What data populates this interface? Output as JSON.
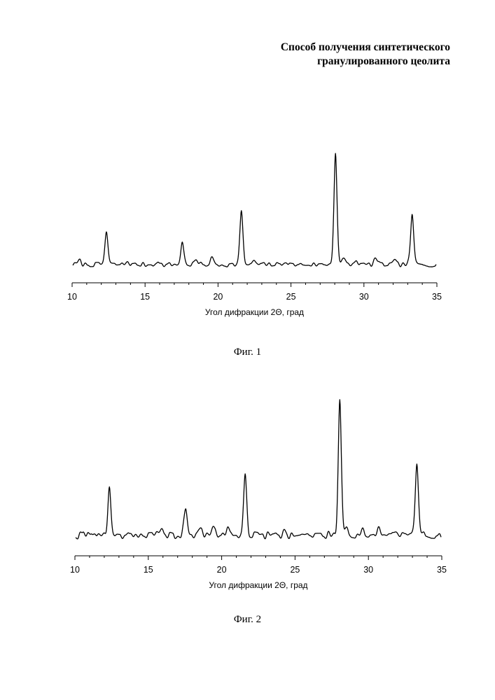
{
  "document": {
    "title_line1": "Способ получения синтетического",
    "title_line2": "гранулированного цеолита"
  },
  "chart_data": [
    {
      "type": "line",
      "caption": "Фиг. 1",
      "xlabel": "Угол дифракции 2Θ, град",
      "ylabel": "",
      "xlim": [
        10,
        35
      ],
      "x_ticks": [
        10,
        15,
        20,
        25,
        30,
        35
      ],
      "y_axis_shown": false,
      "baseline": 0.1,
      "ylim": [
        0,
        1.15
      ],
      "noise_seed": 7,
      "noise_amplitude": 0.018,
      "peaks": [
        {
          "x": 12.35,
          "y": 0.36
        },
        {
          "x": 17.55,
          "y": 0.28
        },
        {
          "x": 21.6,
          "y": 0.52
        },
        {
          "x": 28.05,
          "y": 1.0
        },
        {
          "x": 33.3,
          "y": 0.5
        }
      ],
      "minor_peaks": [
        {
          "x": 10.5,
          "y": 0.03
        },
        {
          "x": 13.8,
          "y": 0.025
        },
        {
          "x": 15.8,
          "y": 0.025
        },
        {
          "x": 18.5,
          "y": 0.035
        },
        {
          "x": 19.6,
          "y": 0.05
        },
        {
          "x": 22.5,
          "y": 0.025
        },
        {
          "x": 24.6,
          "y": 0.03
        },
        {
          "x": 28.6,
          "y": 0.04
        },
        {
          "x": 29.5,
          "y": 0.03
        },
        {
          "x": 30.8,
          "y": 0.05
        },
        {
          "x": 32.1,
          "y": 0.025
        }
      ]
    },
    {
      "type": "line",
      "caption": "Фиг. 2",
      "xlabel": "Угол дифракции 2Θ, град",
      "ylabel": "",
      "xlim": [
        10,
        35
      ],
      "x_ticks": [
        10,
        15,
        20,
        25,
        30,
        35
      ],
      "y_axis_shown": false,
      "baseline": 0.1,
      "ylim": [
        0,
        1.15
      ],
      "noise_seed": 19,
      "noise_amplitude": 0.025,
      "peaks": [
        {
          "x": 12.35,
          "y": 0.4
        },
        {
          "x": 17.55,
          "y": 0.29
        },
        {
          "x": 21.6,
          "y": 0.5
        },
        {
          "x": 28.05,
          "y": 1.0
        },
        {
          "x": 33.3,
          "y": 0.56
        }
      ],
      "minor_peaks": [
        {
          "x": 10.6,
          "y": 0.03
        },
        {
          "x": 11.3,
          "y": 0.03
        },
        {
          "x": 13.8,
          "y": 0.025
        },
        {
          "x": 15.9,
          "y": 0.025
        },
        {
          "x": 18.5,
          "y": 0.04
        },
        {
          "x": 19.5,
          "y": 0.06
        },
        {
          "x": 20.4,
          "y": 0.04
        },
        {
          "x": 24.3,
          "y": 0.035
        },
        {
          "x": 28.5,
          "y": 0.05
        },
        {
          "x": 29.6,
          "y": 0.04
        },
        {
          "x": 30.7,
          "y": 0.05
        },
        {
          "x": 31.8,
          "y": 0.03
        }
      ]
    }
  ]
}
